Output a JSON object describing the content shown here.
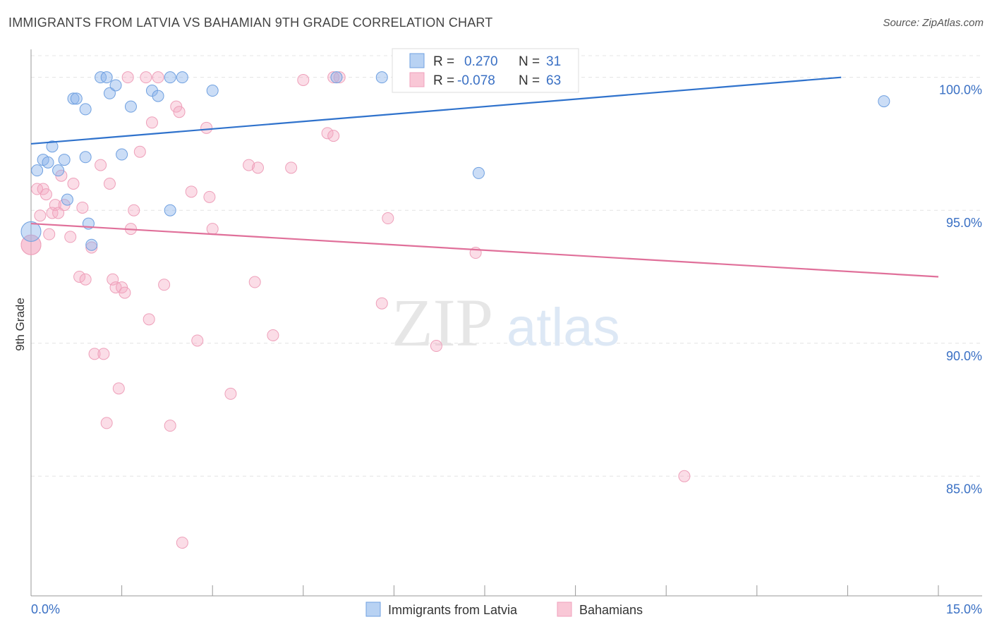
{
  "header": {
    "title": "IMMIGRANTS FROM LATVIA VS BAHAMIAN 9TH GRADE CORRELATION CHART",
    "source": "Source: ZipAtlas.com"
  },
  "watermark": {
    "zip": "ZIP",
    "atlas": "atlas"
  },
  "colors": {
    "blue": "#6fa0e0",
    "pink": "#f0a0bc",
    "blue_line": "#2f72cc",
    "pink_line": "#e0709a",
    "tick_text": "#3a70c4"
  },
  "chart_data": {
    "type": "scatter",
    "title": "IMMIGRANTS FROM LATVIA VS BAHAMIAN 9TH GRADE CORRELATION CHART",
    "xlabel": "",
    "ylabel": "9th Grade",
    "xlim": [
      0,
      15
    ],
    "ylim": [
      80.5,
      100.8
    ],
    "x_tick_labels": [
      "0.0%",
      "15.0%"
    ],
    "y_ticks": [
      85,
      90,
      95,
      100
    ],
    "y_tick_labels": [
      "85.0%",
      "90.0%",
      "95.0%",
      "100.0%"
    ],
    "legend_position": "top-center",
    "stats": [
      {
        "r_label": "R =",
        "r_value": "0.270",
        "n_label": "N =",
        "n_value": "31"
      },
      {
        "r_label": "R =",
        "r_value": "-0.078",
        "n_label": "N =",
        "n_value": "63"
      }
    ],
    "series": [
      {
        "name": "Immigrants from Latvia",
        "color": "#6fa0e0",
        "trend": [
          [
            0,
            97.5
          ],
          [
            15,
            100.3
          ]
        ],
        "points": [
          [
            0.0,
            94.2
          ],
          [
            0.1,
            96.5
          ],
          [
            0.2,
            96.9
          ],
          [
            0.28,
            96.8
          ],
          [
            0.35,
            97.4
          ],
          [
            0.45,
            96.5
          ],
          [
            0.55,
            96.9
          ],
          [
            0.6,
            95.4
          ],
          [
            0.7,
            99.2
          ],
          [
            0.75,
            99.2
          ],
          [
            0.9,
            98.8
          ],
          [
            0.9,
            97.0
          ],
          [
            0.95,
            94.5
          ],
          [
            1.0,
            93.7
          ],
          [
            1.15,
            100.0
          ],
          [
            1.25,
            100.0
          ],
          [
            1.3,
            99.4
          ],
          [
            1.4,
            99.7
          ],
          [
            1.5,
            97.1
          ],
          [
            1.65,
            98.9
          ],
          [
            2.0,
            99.5
          ],
          [
            2.1,
            99.3
          ],
          [
            2.3,
            100.0
          ],
          [
            2.3,
            95.0
          ],
          [
            2.5,
            100.0
          ],
          [
            3.0,
            99.5
          ],
          [
            5.05,
            100.0
          ],
          [
            5.8,
            100.0
          ],
          [
            7.4,
            96.4
          ],
          [
            14.1,
            99.1
          ],
          [
            6.2,
            100.0
          ]
        ]
      },
      {
        "name": "Bahamians",
        "color": "#f0a0bc",
        "trend": [
          [
            0,
            94.5
          ],
          [
            15,
            92.5
          ]
        ],
        "points": [
          [
            0.0,
            93.7
          ],
          [
            0.1,
            95.8
          ],
          [
            0.15,
            94.8
          ],
          [
            0.2,
            95.8
          ],
          [
            0.25,
            95.6
          ],
          [
            0.3,
            94.1
          ],
          [
            0.35,
            94.9
          ],
          [
            0.4,
            95.2
          ],
          [
            0.45,
            94.9
          ],
          [
            0.5,
            96.3
          ],
          [
            0.55,
            95.2
          ],
          [
            0.65,
            94.0
          ],
          [
            0.7,
            96.0
          ],
          [
            0.8,
            92.5
          ],
          [
            0.85,
            95.1
          ],
          [
            0.9,
            92.4
          ],
          [
            1.0,
            93.6
          ],
          [
            1.05,
            89.6
          ],
          [
            1.15,
            96.7
          ],
          [
            1.2,
            89.6
          ],
          [
            1.25,
            87.0
          ],
          [
            1.3,
            96.0
          ],
          [
            1.35,
            92.4
          ],
          [
            1.4,
            92.1
          ],
          [
            1.45,
            88.3
          ],
          [
            1.5,
            92.1
          ],
          [
            1.55,
            91.9
          ],
          [
            1.6,
            100.0
          ],
          [
            1.65,
            94.3
          ],
          [
            1.7,
            95.0
          ],
          [
            1.8,
            97.2
          ],
          [
            1.9,
            100.0
          ],
          [
            1.95,
            90.9
          ],
          [
            2.0,
            98.3
          ],
          [
            2.1,
            100.0
          ],
          [
            2.2,
            92.2
          ],
          [
            2.3,
            86.9
          ],
          [
            2.4,
            98.9
          ],
          [
            2.45,
            98.7
          ],
          [
            2.5,
            82.5
          ],
          [
            2.65,
            95.7
          ],
          [
            2.75,
            90.1
          ],
          [
            2.9,
            98.1
          ],
          [
            2.95,
            95.5
          ],
          [
            3.0,
            94.3
          ],
          [
            3.3,
            88.1
          ],
          [
            3.6,
            96.7
          ],
          [
            3.7,
            92.3
          ],
          [
            3.75,
            96.6
          ],
          [
            4.0,
            90.3
          ],
          [
            4.3,
            96.6
          ],
          [
            4.5,
            99.9
          ],
          [
            4.9,
            97.9
          ],
          [
            5.0,
            97.8
          ],
          [
            5.0,
            100.0
          ],
          [
            5.1,
            100.0
          ],
          [
            5.8,
            91.5
          ],
          [
            5.9,
            94.7
          ],
          [
            6.7,
            89.9
          ],
          [
            7.35,
            93.4
          ],
          [
            7.7,
            100.0
          ],
          [
            10.8,
            85.0
          ],
          [
            0.0,
            93.7
          ]
        ]
      }
    ]
  },
  "bottom_legend": {
    "series1": "Immigrants from Latvia",
    "series2": "Bahamians"
  }
}
